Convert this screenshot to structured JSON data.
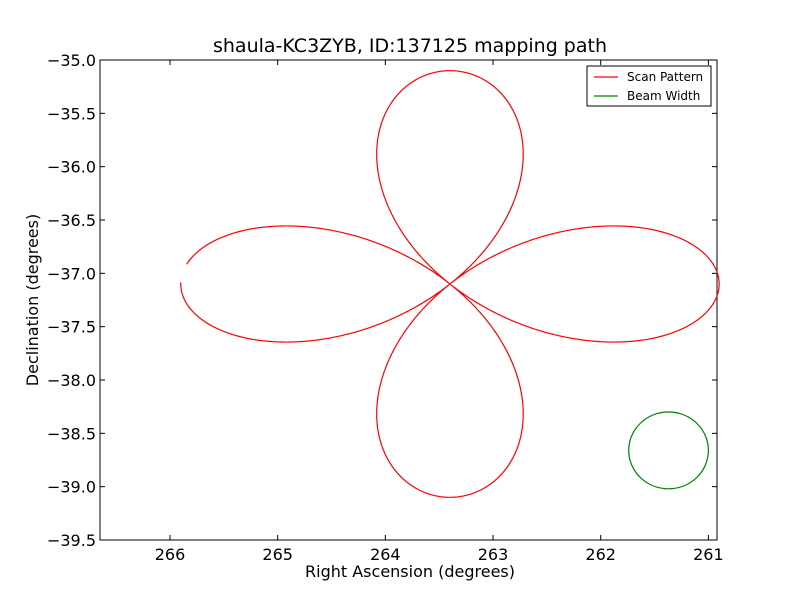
{
  "chart_data": {
    "type": "line",
    "title": "shaula-KC3ZYB, ID:137125 mapping path",
    "xlabel": "Right Ascension (degrees)",
    "ylabel": "Declination (degrees)",
    "xlim": [
      266.65,
      260.92
    ],
    "ylim": [
      -39.5,
      -35.0
    ],
    "x_inverted": true,
    "grid": false,
    "legend_placement": "top-right",
    "xticks": [
      266,
      265,
      264,
      263,
      262,
      261
    ],
    "xtick_labels": [
      "266",
      "265",
      "264",
      "263",
      "262",
      "261"
    ],
    "yticks": [
      -35.0,
      -35.5,
      -36.0,
      -36.5,
      -37.0,
      -37.5,
      -38.0,
      -38.5,
      -39.0,
      -39.5
    ],
    "ytick_labels": [
      "−35.0",
      "−35.5",
      "−36.0",
      "−36.5",
      "−37.0",
      "−37.5",
      "−38.0",
      "−38.5",
      "−39.0",
      "−39.5"
    ],
    "series": [
      {
        "name": "Scan Pattern",
        "color": "#ff0000",
        "shape": "four-petal rose (r = A·cos 2θ)",
        "center": [
          263.4,
          -37.1
        ],
        "petal_extent_ra_deg": 2.5,
        "petal_extent_dec_deg": 2.0,
        "gaps": [
          {
            "from": [
              265.82,
              -36.92
            ],
            "to": [
              265.88,
              -37.08
            ]
          }
        ]
      },
      {
        "name": "Beam Width",
        "color": "#008000",
        "shape": "circle",
        "center": [
          261.37,
          -38.66
        ],
        "radius_ra_deg": 0.37,
        "radius_dec_deg": 0.36
      }
    ]
  }
}
